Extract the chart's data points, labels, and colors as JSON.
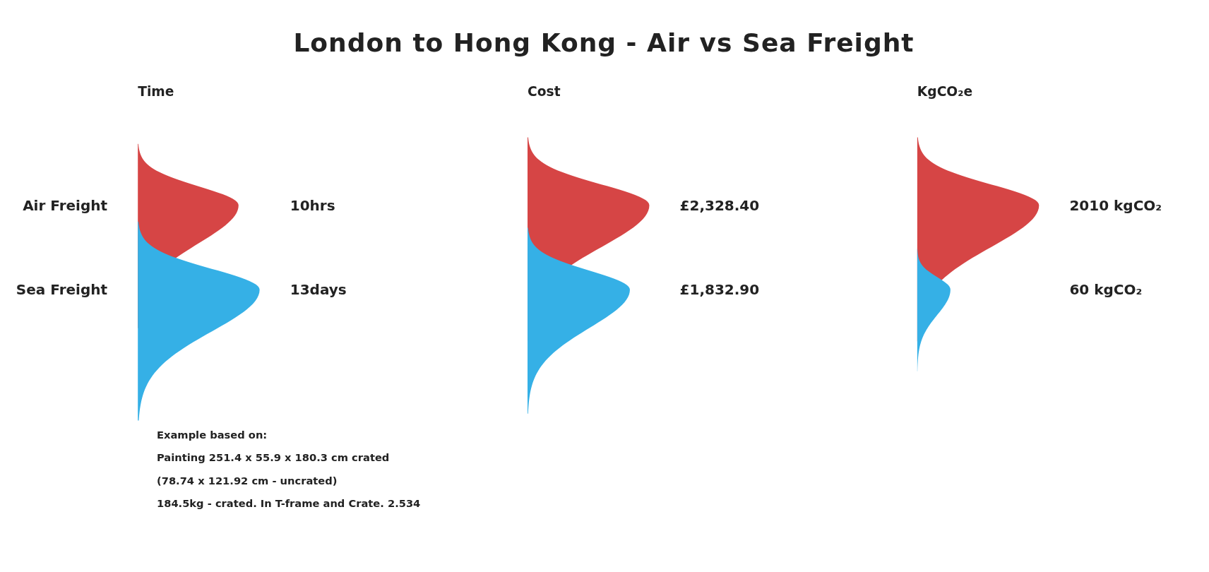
{
  "chart_data": {
    "type": "other",
    "title": "London to Hong Kong - Air vs Sea Freight",
    "categories": [
      "Air Freight",
      "Sea Freight"
    ],
    "series": [
      {
        "name": "Time",
        "colors": [
          "#d64545",
          "#35b0e6"
        ],
        "values": [
          10,
          13
        ],
        "value_labels": [
          "10hrs",
          "13days"
        ]
      },
      {
        "name": "Cost",
        "colors": [
          "#d64545",
          "#35b0e6"
        ],
        "values": [
          2328.4,
          1832.9
        ],
        "value_labels": [
          "£2,328.40",
          "£1,832.90"
        ]
      },
      {
        "name": "KgCO₂e",
        "colors": [
          "#d64545",
          "#35b0e6"
        ],
        "values": [
          2010,
          60
        ],
        "value_labels": [
          "2010 kgCO₂",
          "60 kgCO₂"
        ]
      }
    ],
    "annotations": [
      "Example based on:",
      "Painting 251.4 x 55.9 x 180.3 cm crated",
      "(78.74 x 121.92 cm - uncrated)",
      "184.5kg - crated. In T-frame and Crate. 2.534"
    ]
  }
}
